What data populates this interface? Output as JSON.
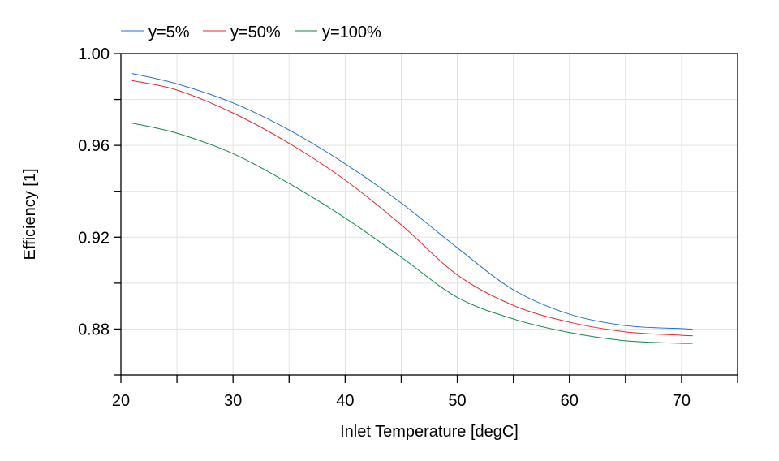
{
  "chart_data": {
    "type": "line",
    "title": "",
    "xlabel": "Inlet Temperature [degC]",
    "ylabel": "Efficiency [1]",
    "xlim": [
      20,
      75
    ],
    "ylim": [
      0.86,
      1.0
    ],
    "xticks": [
      20,
      30,
      40,
      50,
      60,
      70
    ],
    "xtick_labels": [
      "20",
      "30",
      "40",
      "50",
      "60",
      "70"
    ],
    "yticks": [
      0.88,
      0.92,
      0.96,
      1.0
    ],
    "ytick_labels": [
      "0.88",
      "0.92",
      "0.96",
      "1.00"
    ],
    "grid": true,
    "legend_position": "top-left",
    "x": [
      21,
      25,
      30,
      35,
      40,
      45,
      50,
      55,
      60,
      65,
      70,
      71
    ],
    "series": [
      {
        "name": "y=5%",
        "color": "#1f6fd1",
        "values": [
          0.9913,
          0.9868,
          0.9785,
          0.9667,
          0.952,
          0.9349,
          0.9154,
          0.8971,
          0.8865,
          0.8815,
          0.8802,
          0.8799
        ]
      },
      {
        "name": "y=50%",
        "color": "#e8262b",
        "values": [
          0.9882,
          0.9841,
          0.9741,
          0.9609,
          0.9449,
          0.9254,
          0.9036,
          0.8903,
          0.883,
          0.8788,
          0.8773,
          0.8771
        ]
      },
      {
        "name": "y=100%",
        "color": "#0b8a45",
        "values": [
          0.9697,
          0.9653,
          0.9564,
          0.9434,
          0.9284,
          0.9113,
          0.8938,
          0.8844,
          0.8785,
          0.8749,
          0.8738,
          0.8738
        ]
      }
    ]
  }
}
